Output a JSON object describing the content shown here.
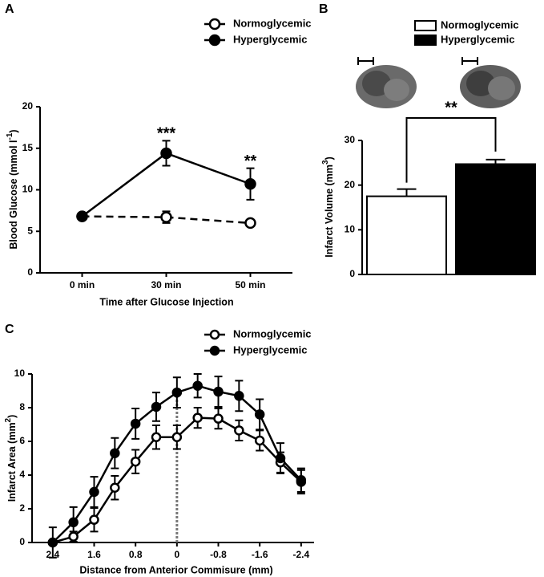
{
  "chart_data": [
    {
      "type": "line",
      "panel": "A",
      "categories": [
        "0 min",
        "30 min",
        "50 min"
      ],
      "series": [
        {
          "name": "Normoglycemic",
          "color": "#000000",
          "marker": "open",
          "line_style": "dashed",
          "values": [
            6.8,
            6.7,
            6.0
          ],
          "errors": [
            0,
            0.7,
            0.3
          ]
        },
        {
          "name": "Hyperglycemic",
          "color": "#000000",
          "marker": "filled",
          "line_style": "solid",
          "values": [
            6.8,
            14.4,
            10.7
          ],
          "errors": [
            0,
            1.5,
            1.9
          ]
        }
      ],
      "ylim": [
        0,
        20
      ],
      "yticks": [
        0,
        5,
        10,
        15,
        20
      ],
      "y_label": {
        "text": "Blood Glucose (mmol l",
        "sup": "-1",
        "end": ")"
      },
      "x_label": "Time after Glucose Injection",
      "annotations": [
        {
          "text": "***",
          "x": "30 min"
        },
        {
          "text": "**",
          "x": "50 min"
        }
      ]
    },
    {
      "type": "bar",
      "panel": "B",
      "series": [
        {
          "name": "Normoglycemic",
          "color": "#ffffff",
          "values": [
            17.5
          ],
          "errors": [
            1.6
          ]
        },
        {
          "name": "Hyperglycemic",
          "color": "#000000",
          "values": [
            24.7
          ],
          "errors": [
            1.0
          ]
        }
      ],
      "ylim": [
        0,
        30
      ],
      "yticks": [
        0,
        10,
        20,
        30
      ],
      "y_label": {
        "text": "Infarct Volume (mm",
        "sup": "3",
        "end": ")"
      },
      "annotation": "**"
    },
    {
      "type": "line",
      "panel": "C",
      "x": [
        2.4,
        2.0,
        1.6,
        1.2,
        0.8,
        0.4,
        0,
        -0.4,
        -0.8,
        -1.2,
        -1.6,
        -2.0,
        -2.4
      ],
      "series": [
        {
          "name": "Normoglycemic",
          "color": "#000000",
          "marker": "open",
          "line_style": "solid",
          "values": [
            0,
            0.35,
            1.35,
            3.25,
            4.8,
            6.25,
            6.25,
            7.4,
            7.35,
            6.65,
            6.05,
            4.75,
            3.6
          ],
          "errors": [
            0,
            0.3,
            0.7,
            0.7,
            0.7,
            0.7,
            0.7,
            0.6,
            0.6,
            0.6,
            0.6,
            0.6,
            0.7
          ]
        },
        {
          "name": "Hyperglycemic",
          "color": "#000000",
          "marker": "filled",
          "line_style": "solid",
          "values": [
            0,
            1.2,
            3.0,
            5.3,
            7.05,
            8.05,
            8.9,
            9.3,
            8.95,
            8.7,
            7.6,
            5.0,
            3.7
          ],
          "errors": [
            0.9,
            0.9,
            0.9,
            0.9,
            0.9,
            0.85,
            0.9,
            0.7,
            0.9,
            0.9,
            0.9,
            0.9,
            0.7
          ]
        }
      ],
      "xlim": [
        2.8,
        -2.65
      ],
      "xticks": [
        2.4,
        1.6,
        0.8,
        0,
        -0.8,
        -1.6,
        -2.4
      ],
      "ylim": [
        0,
        10
      ],
      "yticks": [
        0,
        2,
        4,
        6,
        8,
        10
      ],
      "vline": 0,
      "y_label": {
        "text": "Infarct Area (mm",
        "sup": "2",
        "end": ")"
      },
      "x_label": "Distance from Anterior Commisure (mm)"
    }
  ]
}
